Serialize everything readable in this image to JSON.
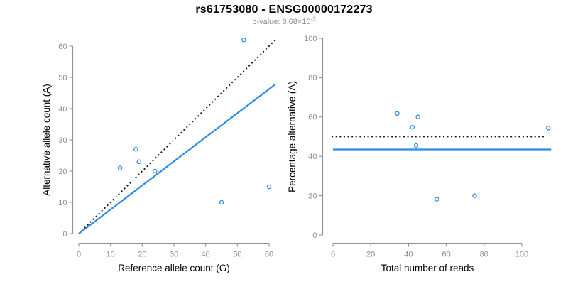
{
  "header": {
    "title": "rs61753080 - ENSG00000172273",
    "subtitle_base": "p-value: 8.68×10",
    "subtitle_exponent": "-3"
  },
  "colors": {
    "accent_blue": "#2b8ce8",
    "line_black": "#111111",
    "axis_gray": "#8f8f8f",
    "tick_label_gray": "#8e8e8e",
    "subtitle_gray": "#8e8e8e",
    "title_black": "#000000"
  },
  "chart_data": [
    {
      "type": "scatter",
      "name": "allele-counts-scatter",
      "xlabel": "Reference allele count (G)",
      "ylabel": "Alternative allele count (A)",
      "xlim": [
        0,
        62
      ],
      "ylim": [
        0,
        62
      ],
      "xticks": [
        0,
        10,
        20,
        30,
        40,
        50,
        60
      ],
      "yticks": [
        0,
        10,
        20,
        30,
        40,
        50,
        60
      ],
      "grid": false,
      "legend": "none",
      "point_color": "#2b8ce8",
      "points": [
        [
          13,
          21
        ],
        [
          18,
          27
        ],
        [
          19,
          23
        ],
        [
          24,
          20
        ],
        [
          45,
          10
        ],
        [
          52,
          62
        ],
        [
          60,
          15
        ]
      ],
      "lines": [
        {
          "name": "identity-line-50pct",
          "style": "dotted",
          "color": "#111111",
          "from": [
            0,
            0
          ],
          "to": [
            62,
            62
          ]
        },
        {
          "name": "fitted-proportion-line",
          "style": "solid",
          "color": "#2b8ce8",
          "from": [
            0,
            0
          ],
          "to": [
            62,
            47.8
          ]
        }
      ]
    },
    {
      "type": "scatter",
      "name": "percentage-vs-coverage-scatter",
      "xlabel": "Total number of reads",
      "ylabel": "Percentage alternative (A)",
      "xlim": [
        0,
        118
      ],
      "ylim": [
        0,
        100
      ],
      "xticks": [
        0,
        20,
        40,
        60,
        80,
        100
      ],
      "yticks": [
        0,
        20,
        40,
        60,
        80,
        100
      ],
      "grid": false,
      "legend": "none",
      "point_color": "#2b8ce8",
      "points": [
        [
          34,
          61.8
        ],
        [
          42,
          54.8
        ],
        [
          45,
          60
        ],
        [
          44,
          45.5
        ],
        [
          55,
          18.2
        ],
        [
          75,
          20
        ],
        [
          114,
          54.4
        ]
      ],
      "lines": [
        {
          "name": "expected-50pct-line",
          "style": "dotted",
          "color": "#111111",
          "from": [
            -0.7,
            50
          ],
          "to": [
            112.5,
            50
          ]
        },
        {
          "name": "fitted-mean-pct-line",
          "style": "solid",
          "color": "#2b8ce8",
          "from": [
            0,
            43.5
          ],
          "to": [
            115.5,
            43.5
          ]
        }
      ]
    }
  ]
}
